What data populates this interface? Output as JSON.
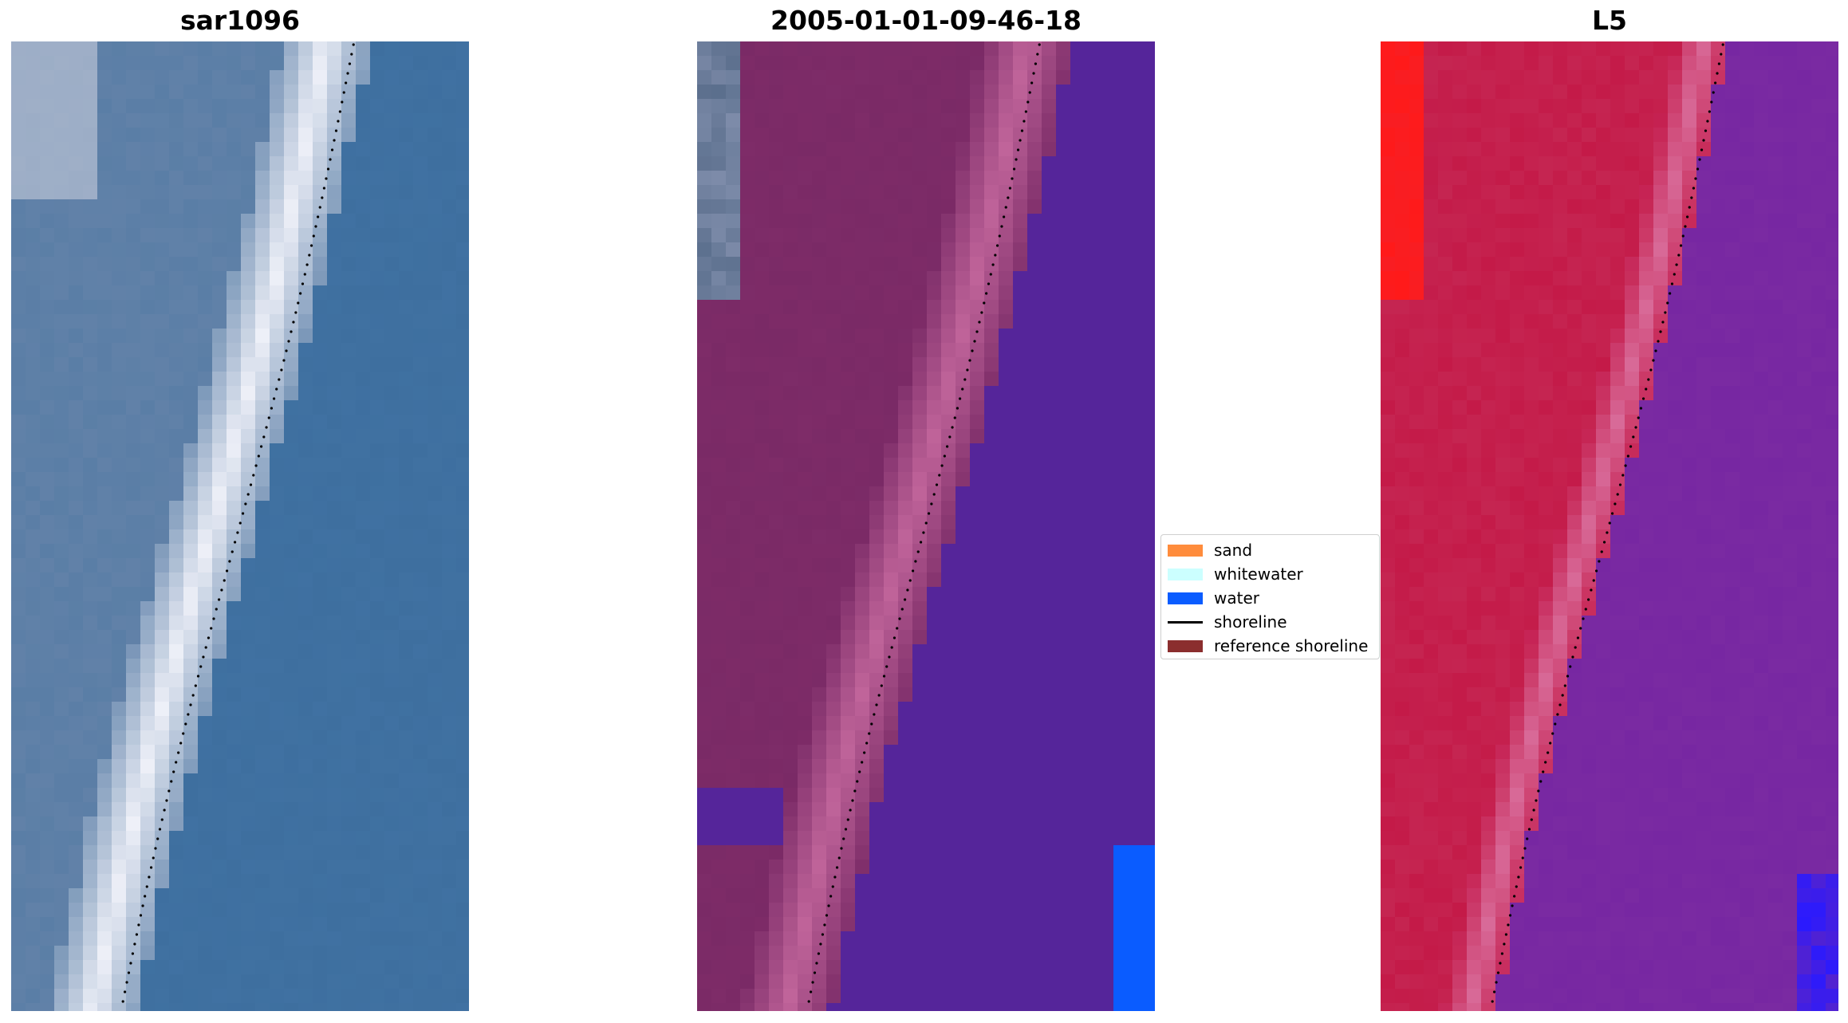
{
  "panels": [
    {
      "title": "sar1096",
      "kind": "rgb"
    },
    {
      "title": "2005-01-01-09-46-18",
      "kind": "classified"
    },
    {
      "title": "L5",
      "kind": "false-color"
    }
  ],
  "legend": {
    "items": [
      {
        "label": "sand",
        "color": "#ff8c3c",
        "type": "patch"
      },
      {
        "label": "whitewater",
        "color": "#ccffff",
        "type": "patch"
      },
      {
        "label": "water",
        "color": "#0a5cff",
        "type": "patch"
      },
      {
        "label": "shoreline",
        "color": "#000000",
        "type": "line"
      },
      {
        "label": "reference shoreline",
        "color": "#8b2e2e",
        "type": "patch"
      }
    ]
  },
  "colors": {
    "rgb_land": "#5a7ea6",
    "rgb_sea": "#3e6f9f",
    "rgb_surf": "#eef0f8",
    "class_land": "#7a2a66",
    "class_surf": "#c0649a",
    "class_water": "#55259a",
    "class_water_blue": "#0a5cff",
    "fc_land": "#c41a48",
    "fc_surf": "#d86a98",
    "fc_water": "#7a2aa2",
    "fc_red": "#ff1a1a",
    "fc_blue": "#2a1aff",
    "shoreline": "#000000"
  }
}
